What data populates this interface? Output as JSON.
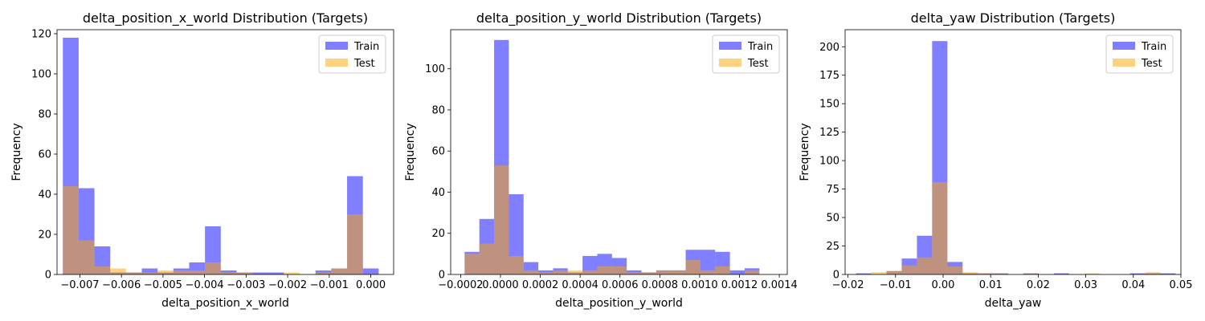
{
  "chart_data": [
    {
      "type": "bar",
      "title": "delta_position_x_world Distribution (Targets)",
      "xlabel": "delta_position_x_world",
      "ylabel": "Frequency",
      "xlim": [
        -0.00755,
        0.00055
      ],
      "ylim": [
        0,
        122
      ],
      "x_ticks": [
        -0.007,
        -0.006,
        -0.005,
        -0.004,
        -0.003,
        -0.002,
        -0.001,
        0.0
      ],
      "x_tick_labels": [
        "−0.007",
        "−0.006",
        "−0.005",
        "−0.004",
        "−0.003",
        "−0.002",
        "−0.001",
        "0.000"
      ],
      "y_ticks": [
        0,
        20,
        40,
        60,
        80,
        100,
        120
      ],
      "y_tick_labels": [
        "0",
        "20",
        "40",
        "60",
        "80",
        "100",
        "120"
      ],
      "legend_position": "top-right",
      "grid": false,
      "series": [
        {
          "name": "Train",
          "color": "#0000ff",
          "opacity": 0.5,
          "bin_edges": [
            -0.00741,
            -0.00703,
            -0.00665,
            -0.00627,
            -0.00589,
            -0.00551,
            -0.00513,
            -0.00475,
            -0.00437,
            -0.00399,
            -0.00361,
            -0.00323,
            -0.00285,
            -0.00247,
            -0.00209,
            -0.00171,
            -0.00133,
            -0.00095,
            -0.00057,
            -0.00019,
            0.00019,
            0.00057
          ],
          "values": [
            118,
            43,
            14,
            1,
            1,
            3,
            1,
            3,
            6,
            24,
            2,
            1,
            1,
            1,
            0,
            0,
            2,
            3,
            49,
            3,
            0
          ]
        },
        {
          "name": "Test",
          "color": "#ffa500",
          "opacity": 0.5,
          "bin_edges": [
            -0.00741,
            -0.00703,
            -0.00665,
            -0.00627,
            -0.00589,
            -0.00551,
            -0.00513,
            -0.00475,
            -0.00437,
            -0.00399,
            -0.00361,
            -0.00323,
            -0.00285,
            -0.00247,
            -0.00209,
            -0.00171,
            -0.00133,
            -0.00095,
            -0.00057,
            -0.00019
          ],
          "values": [
            44,
            17,
            4,
            3,
            1,
            1,
            2,
            2,
            2,
            6,
            1,
            1,
            0,
            0,
            1,
            0,
            1,
            3,
            30
          ]
        }
      ]
    },
    {
      "type": "bar",
      "title": "delta_position_y_world Distribution (Targets)",
      "xlabel": "delta_position_y_world",
      "ylabel": "Frequency",
      "xlim": [
        -0.00025,
        0.00144
      ],
      "ylim": [
        0,
        119
      ],
      "x_ticks": [
        -0.0002,
        0.0,
        0.0002,
        0.0004,
        0.0006,
        0.0008,
        0.001,
        0.0012,
        0.0014
      ],
      "x_tick_labels": [
        "−0.0002",
        "0.0000",
        "0.0002",
        "0.0004",
        "0.0006",
        "0.0008",
        "0.0010",
        "0.0012",
        "0.0014"
      ],
      "y_ticks": [
        0,
        20,
        40,
        60,
        80,
        100
      ],
      "y_tick_labels": [
        "0",
        "20",
        "40",
        "60",
        "80",
        "100"
      ],
      "legend_position": "top-right",
      "grid": false,
      "series": [
        {
          "name": "Train",
          "color": "#0000ff",
          "opacity": 0.5,
          "bin_edges": [
            -0.00018,
            -0.000106,
            -3.2e-05,
            4.2e-05,
            0.000116,
            0.00019,
            0.000264,
            0.000338,
            0.000412,
            0.000486,
            0.00056,
            0.000634,
            0.000708,
            0.000782,
            0.000856,
            0.00093,
            0.001004,
            0.001078,
            0.001152,
            0.001226,
            0.0013,
            0.001374
          ],
          "values": [
            11,
            27,
            114,
            39,
            6,
            2,
            3,
            1,
            9,
            10,
            8,
            2,
            1,
            2,
            2,
            12,
            12,
            11,
            2,
            3,
            0
          ]
        },
        {
          "name": "Test",
          "color": "#ffa500",
          "opacity": 0.5,
          "bin_edges": [
            -0.00018,
            -0.000106,
            -3.2e-05,
            4.2e-05,
            0.000116,
            0.00019,
            0.000264,
            0.000338,
            0.000412,
            0.000486,
            0.00056,
            0.000634,
            0.000708,
            0.000782,
            0.000856,
            0.00093,
            0.001004,
            0.001078,
            0.001152,
            0.001226,
            0.0013,
            0.001374
          ],
          "values": [
            10,
            15,
            53,
            9,
            2,
            1,
            2,
            2,
            2,
            4,
            4,
            1,
            1,
            2,
            2,
            7,
            2,
            4,
            0,
            2,
            0
          ]
        }
      ]
    },
    {
      "type": "bar",
      "title": "delta_yaw Distribution (Targets)",
      "xlabel": "delta_yaw",
      "ylabel": "Frequency",
      "xlim": [
        -0.0206,
        0.05
      ],
      "ylim": [
        0,
        215
      ],
      "x_ticks": [
        -0.02,
        -0.01,
        0.0,
        0.01,
        0.02,
        0.03,
        0.04,
        0.05
      ],
      "x_tick_labels": [
        "−0.02",
        "−0.01",
        "0.00",
        "0.01",
        "0.02",
        "0.03",
        "0.04",
        "0.05"
      ],
      "y_ticks": [
        0,
        25,
        50,
        75,
        100,
        125,
        150,
        175,
        200
      ],
      "y_tick_labels": [
        "0",
        "25",
        "50",
        "75",
        "100",
        "125",
        "150",
        "175",
        "200"
      ],
      "legend_position": "top-right",
      "grid": false,
      "series": [
        {
          "name": "Train",
          "color": "#0000ff",
          "opacity": 0.5,
          "bin_edges": [
            -0.0183,
            -0.0151,
            -0.0119,
            -0.0087,
            -0.0055,
            -0.0023,
            0.0009,
            0.0041,
            0.0073,
            0.0105,
            0.0137,
            0.0169,
            0.0201,
            0.0233,
            0.0265,
            0.0297,
            0.0329,
            0.0361,
            0.0393,
            0.0425,
            0.0457,
            0.0489
          ],
          "values": [
            1,
            0,
            3,
            14,
            34,
            205,
            11,
            1,
            1,
            1,
            0,
            1,
            0,
            1,
            0,
            0,
            0,
            0,
            1,
            1,
            1
          ]
        },
        {
          "name": "Test",
          "color": "#ffa500",
          "opacity": 0.5,
          "bin_edges": [
            -0.0151,
            -0.0119,
            -0.0087,
            -0.0055,
            -0.0023,
            0.0009,
            0.0041,
            0.0073,
            0.0105,
            0.0137,
            0.0169,
            0.0201,
            0.0233,
            0.0265,
            0.0297,
            0.0329,
            0.0361,
            0.0393,
            0.0425,
            0.0457
          ],
          "values": [
            2,
            3,
            8,
            15,
            81,
            7,
            2,
            1,
            1,
            0,
            1,
            0,
            0,
            0,
            1,
            0,
            0,
            0,
            2
          ]
        }
      ]
    }
  ]
}
